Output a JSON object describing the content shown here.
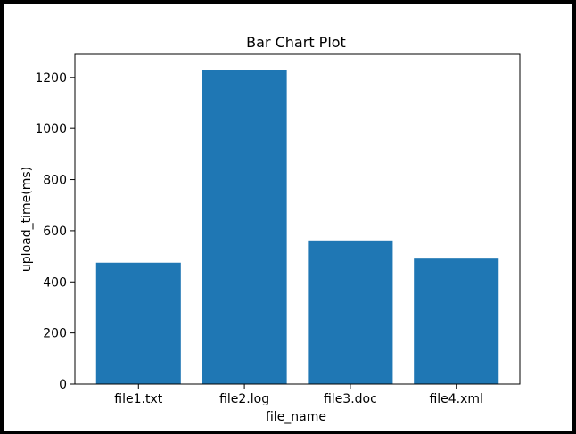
{
  "chart_data": {
    "type": "bar",
    "title": "Bar Chart Plot",
    "xlabel": "file_name",
    "ylabel": "upload_time(ms)",
    "categories": [
      "file1.txt",
      "file2.log",
      "file3.doc",
      "file4.xml"
    ],
    "values": [
      475,
      1229,
      562,
      491
    ],
    "ylim": [
      0,
      1290
    ],
    "yticks": [
      0,
      200,
      400,
      600,
      800,
      1000,
      1200
    ],
    "ytick_labels": [
      "0",
      "200",
      "400",
      "600",
      "800",
      "1000",
      "1200"
    ],
    "grid": false,
    "legend": false,
    "bar_color": "#1f77b4"
  }
}
